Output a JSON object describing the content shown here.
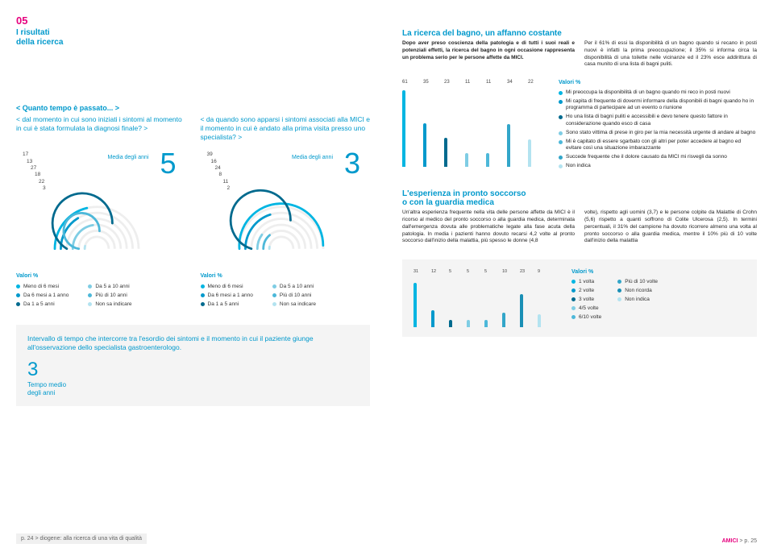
{
  "header": {
    "num": "05",
    "title_l1": "I risultati",
    "title_l2": "della ricerca"
  },
  "q1": {
    "nav": "< Quanto tempo è passato... >",
    "text": "< dal momento in cui sono iniziati i sintomi al momento in cui è stata formulata la diagnosi finale? >"
  },
  "q2": {
    "text": "< da quando sono apparsi i sintomi associati alla MICI e il momento in cui è andato alla prima visita presso uno specialista? >"
  },
  "chart1": {
    "media_label": "Media degli anni",
    "big_num": "5",
    "values": [
      17,
      13,
      27,
      18,
      22,
      3
    ],
    "colors": [
      "#00b5e2",
      "#0099cc",
      "#006a8e",
      "#7fcde4",
      "#4db8d9",
      "#b3e3f0"
    ]
  },
  "chart2": {
    "media_label": "Media degli anni",
    "big_num": "3",
    "values": [
      39,
      16,
      24,
      8,
      11,
      2
    ],
    "colors": [
      "#00b5e2",
      "#0099cc",
      "#006a8e",
      "#7fcde4",
      "#4db8d9",
      "#b3e3f0"
    ]
  },
  "legend_title": "Valori %",
  "legend1": {
    "col1": [
      {
        "c": "#00b5e2",
        "t": "Meno di 6 mesi"
      },
      {
        "c": "#0099cc",
        "t": "Da 6 mesi a 1 anno"
      },
      {
        "c": "#006a8e",
        "t": "Da 1 a 5 anni"
      }
    ],
    "col2": [
      {
        "c": "#7fcde4",
        "t": "Da 5 a 10 anni"
      },
      {
        "c": "#4db8d9",
        "t": "Più di 10 anni"
      },
      {
        "c": "#b3e3f0",
        "t": "Non sa indicare"
      }
    ]
  },
  "interval": {
    "text": "Intervallo di tempo che intercorre tra l'esordio dei sintomi e il momento in cui il paziente giunge all'osservazione dello specialista gastroenterologo.",
    "num": "3",
    "sub_l1": "Tempo medio",
    "sub_l2": "degli anni"
  },
  "footer_left": "p. 24 > diogene: alla ricerca di una vita di qualità",
  "footer_right_a": "AMICI",
  "footer_right_b": " > p. 25",
  "right": {
    "s1": {
      "heading": "La ricerca del bagno, un affanno costante",
      "p1": "Dopo aver preso coscienza della patologia e di tutti i suoi reali e potenziali effetti, la ricerca del bagno in ogni occasione rappresenta un problema serio per le persone affette da MICI.",
      "p2": "Per il 61% di essi la disponibilità di un bagno quando si recano in posti nuovi è infatti la prima preoccupazione; il 35% si informa circa la disponibilità di una toilette nelle vicinanze ed il 23% esce addirittura di casa munito di una lista di bagni puliti."
    },
    "bars1": {
      "values": [
        61,
        35,
        23,
        11,
        11,
        34,
        22
      ],
      "colors": [
        "#00b5e2",
        "#0099cc",
        "#006a8e",
        "#7fcde4",
        "#4db8d9",
        "#33a6c9",
        "#b3e3f0"
      ],
      "legend_title": "Valori %",
      "items": [
        {
          "c": "#00b5e2",
          "t": "Mi preoccupa la disponibilità di un bagno quando mi reco in posti nuovi"
        },
        {
          "c": "#0099cc",
          "t": "Mi capita di frequente di dovermi informare della disponibili di bagni quando ho in programma di partecipare ad un evento o riunione"
        },
        {
          "c": "#006a8e",
          "t": "Ho una lista di bagni puliti e accessibili e devo tenere questo fattore in considerazione quando esco di casa"
        },
        {
          "c": "#7fcde4",
          "t": "Sono stato vittima di prese in giro per la mia necessità urgente di andare al bagno"
        },
        {
          "c": "#4db8d9",
          "t": "Mi è capitato di essere sgarbato con gli altri per poter accedere al bagno ed evitare così una situazione imbarazzante"
        },
        {
          "c": "#33a6c9",
          "t": "Succede frequente che il dolore causato da MICI mi risvegli da sonno"
        },
        {
          "c": "#b3e3f0",
          "t": "Non indica"
        }
      ]
    },
    "s2": {
      "heading_l1": "L'esperienza in pronto soccorso",
      "heading_l2": "o con la guardia medica",
      "p1": "Un'altra esperienza frequente nella vita delle persone affette da MICI è il ricorso al medico del pronto soccorso o alla guardia medica, determinata dall'emergenza dovuta alle problematiche legate alla fase acuta della patologia. In media i pazienti hanno dovuto recarsi 4,2 volte al pronto soccorso dall'inizio della malattia, più spesso le donne (4,8",
      "p2": "volte), rispetto agli uomini (3,7) e le persone colpite da Malattie di Crohn (5,6) rispetto a quanti soffrono di Colite Ulcerosa (2,5). In termini percentuali, il 31% del campione ha dovuto ricorrere almeno una volta al pronto soccorso o alla guardia medica, mentre il 10% più di 10 volte dall'inizio della malattia"
    },
    "bars2": {
      "values": [
        31,
        12,
        5,
        5,
        5,
        10,
        23,
        9
      ],
      "colors": [
        "#00b5e2",
        "#0099cc",
        "#006a8e",
        "#7fcde4",
        "#4db8d9",
        "#33a6c9",
        "#1a8fb5",
        "#b3e3f0"
      ],
      "legend_title": "Valori %",
      "col1": [
        {
          "c": "#00b5e2",
          "t": "1 volta"
        },
        {
          "c": "#0099cc",
          "t": "2 volte"
        },
        {
          "c": "#006a8e",
          "t": "3 volte"
        },
        {
          "c": "#7fcde4",
          "t": "4/5 volte"
        },
        {
          "c": "#4db8d9",
          "t": "6/10 volte"
        }
      ],
      "col2": [
        {
          "c": "#33a6c9",
          "t": "Più di 10 volte"
        },
        {
          "c": "#1a8fb5",
          "t": "Non ricorda"
        },
        {
          "c": "#b3e3f0",
          "t": "Non indica"
        }
      ]
    }
  }
}
